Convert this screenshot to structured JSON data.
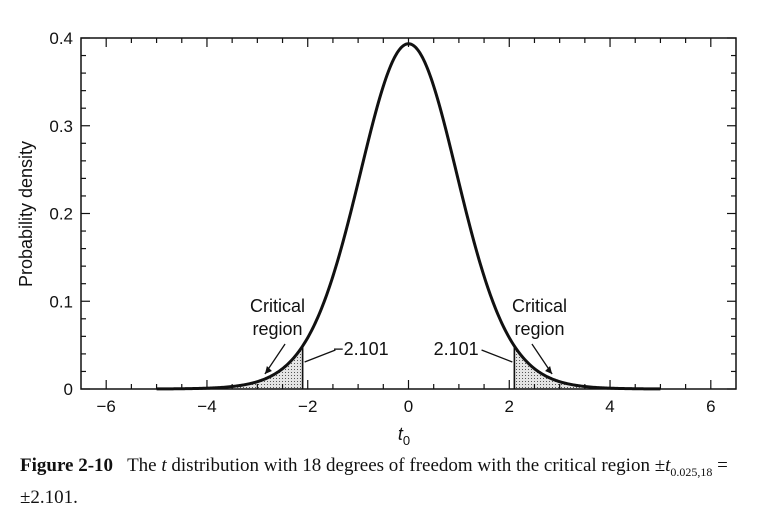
{
  "chart_data": {
    "type": "line",
    "title": "",
    "xlabel": "t",
    "xlabel_sub": "0",
    "ylabel": "Probability density",
    "xlim": [
      -6.5,
      6.5
    ],
    "ylim": [
      0,
      0.4
    ],
    "xticks": [
      -6,
      -4,
      -2,
      0,
      2,
      4,
      6
    ],
    "xtick_labels": [
      "−6",
      "−4",
      "−2",
      "0",
      "2",
      "4",
      "6"
    ],
    "yticks": [
      0,
      0.1,
      0.2,
      0.3,
      0.4
    ],
    "ytick_labels": [
      "0",
      "0.1",
      "0.2",
      "0.3",
      "0.4"
    ],
    "degrees_of_freedom": 18,
    "critical_value": 2.101,
    "series": [
      {
        "x": [
          -5,
          -4.5,
          -4,
          -3.5,
          -3,
          -2.5,
          -2,
          -1.5,
          -1,
          -0.5,
          0,
          0.5,
          1,
          1.5,
          2,
          2.5,
          3,
          3.5,
          4,
          4.5,
          5
        ],
        "y": [
          0.0002,
          0.0006,
          0.0015,
          0.0038,
          0.0088,
          0.0205,
          0.0544,
          0.1269,
          0.2384,
          0.3489,
          0.396,
          0.3489,
          0.2384,
          0.1269,
          0.0544,
          0.0205,
          0.0088,
          0.0038,
          0.0015,
          0.0006,
          0.0002
        ]
      }
    ],
    "annotations": {
      "left_region": [
        "Critical",
        "region"
      ],
      "right_region": [
        "Critical",
        "region"
      ],
      "left_value": "−2.101",
      "right_value": "2.101"
    },
    "grid": false,
    "legend": "none"
  },
  "caption": {
    "label": "Figure 2-10",
    "text_before": "The ",
    "var_t": "t",
    "text_after": " distribution with 18 degrees of freedom with the critical region ±",
    "sub": "0.025,18",
    "text_end": " = ±2.101."
  }
}
